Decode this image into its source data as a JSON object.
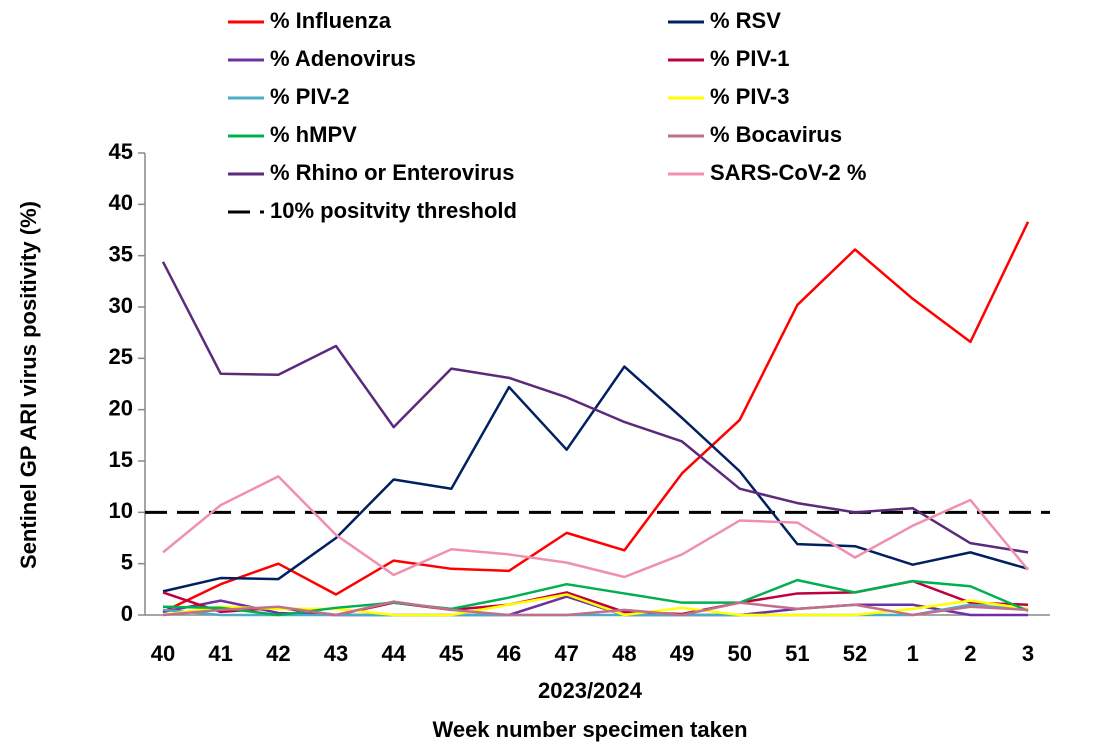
{
  "chart_data": {
    "type": "line",
    "y_label": "Sentinel GP ARI virus positivity (%)",
    "x_sublabel": "2023/2024",
    "x_label": "Week number specimen taken",
    "categories": [
      "40",
      "41",
      "42",
      "43",
      "44",
      "45",
      "46",
      "47",
      "48",
      "49",
      "50",
      "51",
      "52",
      "1",
      "2",
      "3"
    ],
    "ylim": [
      0,
      45
    ],
    "yticks": [
      0,
      5,
      10,
      15,
      20,
      25,
      30,
      35,
      40,
      45
    ],
    "grid": false,
    "series": [
      {
        "name": "% Influenza",
        "color": "#ff0000",
        "values": [
          0.3,
          3,
          5,
          2,
          5.3,
          4.5,
          4.3,
          8,
          6.3,
          13.8,
          19,
          30.2,
          35.6,
          30.8,
          26.6,
          38.3
        ]
      },
      {
        "name": "% RSV",
        "color": "#002060",
        "values": [
          2.3,
          3.6,
          3.5,
          7.5,
          13.2,
          12.3,
          22.2,
          16.1,
          24.2,
          19.2,
          14,
          6.9,
          6.7,
          4.9,
          6.1,
          4.5
        ]
      },
      {
        "name": "% Adenovirus",
        "color": "#7030a0",
        "values": [
          0.3,
          1.4,
          0.2,
          0,
          0,
          0,
          0,
          1.8,
          0,
          0,
          0,
          0.6,
          1,
          1,
          0,
          0
        ]
      },
      {
        "name": "% PIV-1",
        "color": "#c0003c",
        "values": [
          2.2,
          0.3,
          0.7,
          0,
          1.2,
          0.5,
          1,
          2.2,
          0.3,
          0.1,
          1.2,
          2.1,
          2.2,
          3.3,
          1.2,
          1
        ]
      },
      {
        "name": "% PIV-2",
        "color": "#4bacc6",
        "values": [
          0.5,
          0,
          0,
          0,
          0,
          0,
          0,
          0,
          0,
          0,
          0,
          0,
          0,
          0,
          1,
          0.5
        ]
      },
      {
        "name": "% PIV-3",
        "color": "#ffff00",
        "values": [
          0,
          0.8,
          0.6,
          0.6,
          0,
          0,
          1,
          2,
          0,
          0.7,
          0,
          0,
          0,
          0.6,
          1.4,
          0.6
        ]
      },
      {
        "name": "% hMPV",
        "color": "#00b050",
        "values": [
          0.8,
          0.7,
          0,
          0.7,
          1.2,
          0.6,
          1.7,
          3,
          2.1,
          1.2,
          1.2,
          3.4,
          2.2,
          3.3,
          2.8,
          0.4
        ]
      },
      {
        "name": "% Bocavirus",
        "color": "#c0708a",
        "values": [
          0,
          0.5,
          0.8,
          0,
          1.3,
          0.5,
          0,
          0,
          0.5,
          0,
          1.2,
          0.6,
          1,
          0,
          0.8,
          0.5
        ]
      },
      {
        "name": "% Rhino or Enterovirus",
        "color": "#5c2a7a",
        "values": [
          34.4,
          23.5,
          23.4,
          26.2,
          18.3,
          24,
          23.1,
          21.2,
          18.8,
          16.9,
          12.3,
          10.9,
          10,
          10.4,
          7,
          6.1
        ]
      },
      {
        "name": "SARS-CoV-2 %",
        "color": "#f090b0",
        "values": [
          6.1,
          10.7,
          13.5,
          7.8,
          3.9,
          6.4,
          5.9,
          5.1,
          3.7,
          5.9,
          9.2,
          9,
          5.6,
          8.7,
          11.2,
          4.4
        ]
      }
    ],
    "threshold": {
      "name": "10% positvity threshold",
      "value": 10,
      "color": "#000000"
    }
  }
}
